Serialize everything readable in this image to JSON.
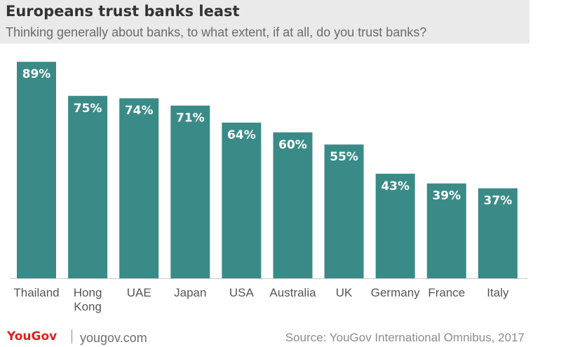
{
  "header": {
    "title": "Europeans trust banks least",
    "subtitle": "Thinking generally about banks, to what extent, if at all, do you trust banks?"
  },
  "colors": {
    "bar": "#3a8b87",
    "label_on_bar": "#ffffff",
    "axis_line": "#cccccc",
    "category_text": "#555555",
    "brand": "#e0201d"
  },
  "chart_data": {
    "type": "bar",
    "title": "Europeans trust banks least",
    "subtitle": "Thinking generally about banks, to what extent, if at all, do you trust banks?",
    "categories": [
      [
        "Thailand"
      ],
      [
        "Hong",
        "Kong"
      ],
      [
        "UAE"
      ],
      [
        "Japan"
      ],
      [
        "USA"
      ],
      [
        "Australia"
      ],
      [
        "UK"
      ],
      [
        "Germany"
      ],
      [
        "France"
      ],
      [
        "Italy"
      ]
    ],
    "values": [
      89,
      75,
      74,
      71,
      64,
      60,
      55,
      43,
      39,
      37
    ],
    "value_labels": [
      "89%",
      "75%",
      "74%",
      "71%",
      "64%",
      "60%",
      "55%",
      "43%",
      "39%",
      "37%"
    ],
    "unit": "%",
    "ylim": [
      0,
      100
    ],
    "grid": false,
    "legend": "none"
  },
  "footer": {
    "brand": "YouGov",
    "site": "yougov.com",
    "source": "Source: YouGov International Omnibus, 2017"
  }
}
